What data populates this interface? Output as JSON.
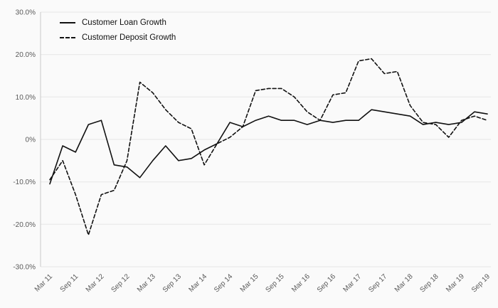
{
  "chart_data": {
    "type": "line",
    "title": "",
    "xlabel": "",
    "ylabel": "",
    "ylim": [
      -30,
      30
    ],
    "y_ticks": [
      30,
      20,
      10,
      0,
      -10,
      -20,
      -30
    ],
    "y_tick_labels": [
      "30.0%",
      "20.0%",
      "10.0%",
      "0%",
      "-10.0%",
      "-20.0%",
      "-30.0%"
    ],
    "grid": "horizontal",
    "legend_position": "top-left",
    "x": [
      "Mar 11",
      "Jun 11",
      "Sep 11",
      "Dec 11",
      "Mar 12",
      "Jun 12",
      "Sep 12",
      "Dec 12",
      "Mar 13",
      "Jun 13",
      "Sep 13",
      "Dec 13",
      "Mar 14",
      "Jun 14",
      "Sep 14",
      "Dec 14",
      "Mar 15",
      "Jun 15",
      "Sep 15",
      "Dec 15",
      "Mar 16",
      "Jun 16",
      "Sep 16",
      "Dec 16",
      "Mar 17",
      "Jun 17",
      "Sep 17",
      "Dec 17",
      "Mar 18",
      "Jun 18",
      "Sep 18",
      "Dec 18",
      "Mar 19",
      "Jun 19",
      "Sep 19"
    ],
    "x_tick_labels": [
      "Mar 11",
      "Sep 11",
      "Mar 12",
      "Sep 12",
      "Mar 13",
      "Sep 13",
      "Mar 14",
      "Sep 14",
      "Mar 15",
      "Sep 15",
      "Mar 16",
      "Sep 16",
      "Mar 17",
      "Sep 17",
      "Mar 18",
      "Sep 18",
      "Mar 19",
      "Sep 19"
    ],
    "series": [
      {
        "name": "Customer Loan Growth",
        "style": "solid",
        "values": [
          -10.5,
          -1.5,
          -3.0,
          3.5,
          4.5,
          -6.0,
          -6.5,
          -9.0,
          -5.0,
          -1.5,
          -5.0,
          -4.5,
          -2.5,
          -1.0,
          4.0,
          3.0,
          4.5,
          5.5,
          4.5,
          4.5,
          3.5,
          4.5,
          4.0,
          4.5,
          4.5,
          7.0,
          6.5,
          6.0,
          5.5,
          3.5,
          4.0,
          3.5,
          4.0,
          6.5,
          6.0
        ]
      },
      {
        "name": "Customer Deposit Growth",
        "style": "dashed",
        "values": [
          -9.5,
          -5.0,
          -13.0,
          -22.5,
          -13.0,
          -12.0,
          -5.0,
          13.5,
          11.0,
          7.0,
          4.0,
          2.5,
          -6.0,
          -1.0,
          0.5,
          3.0,
          11.5,
          12.0,
          12.0,
          10.0,
          6.5,
          4.5,
          10.5,
          11.0,
          18.5,
          19.0,
          15.5,
          16.0,
          8.0,
          4.0,
          3.5,
          0.5,
          4.5,
          5.5,
          4.5
        ]
      }
    ],
    "colors": {
      "line": "#111111",
      "grid": "#e6e6e6",
      "axis": "#c9c9c9",
      "tick_text": "#595959",
      "background": "#fafafa"
    }
  }
}
